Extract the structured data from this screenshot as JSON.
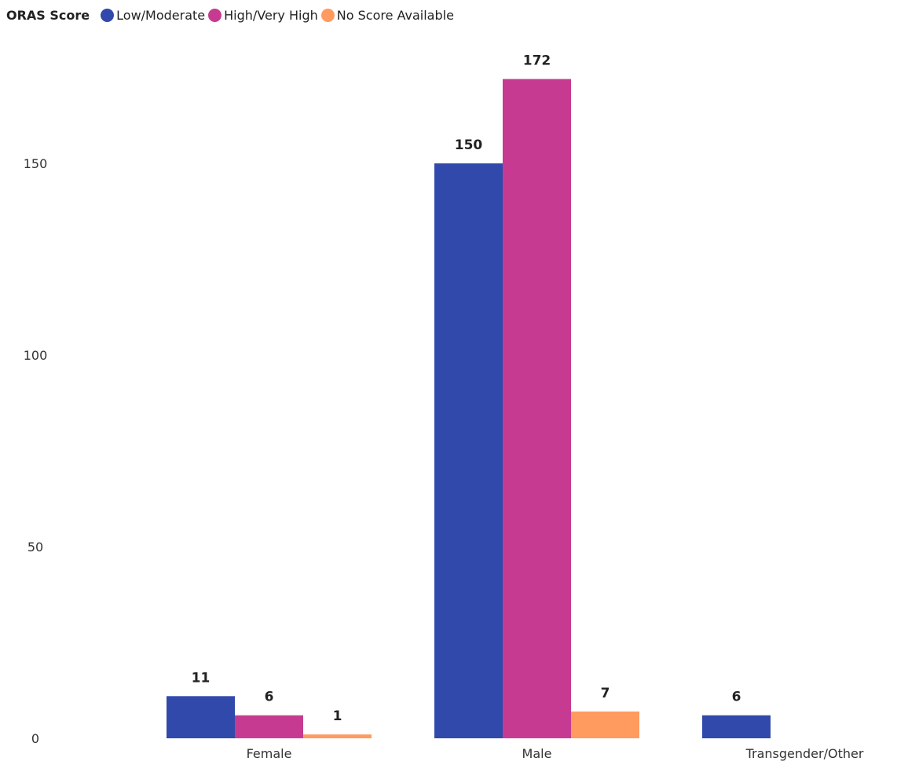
{
  "legend": {
    "title": "ORAS Score",
    "items": [
      {
        "label": "Low/Moderate",
        "color": "#3149AB"
      },
      {
        "label": "High/Very High",
        "color": "#C63B91"
      },
      {
        "label": "No Score Available",
        "color": "#FF9B5F"
      }
    ]
  },
  "chart_data": {
    "type": "bar",
    "categories": [
      "Female",
      "Male",
      "Transgender/Other"
    ],
    "series": [
      {
        "name": "Low/Moderate",
        "color": "#3149AB",
        "values": [
          11,
          150,
          6
        ]
      },
      {
        "name": "High/Very High",
        "color": "#C63B91",
        "values": [
          6,
          172,
          null
        ]
      },
      {
        "name": "No Score Available",
        "color": "#FF9B5F",
        "values": [
          1,
          7,
          null
        ]
      }
    ],
    "y_ticks": [
      0,
      50,
      100,
      150
    ],
    "ylim": [
      0,
      182
    ],
    "grid": false,
    "legend_position": "top-left",
    "data_labels": true
  }
}
